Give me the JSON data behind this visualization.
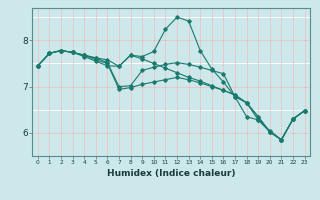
{
  "xlabel": "Humidex (Indice chaleur)",
  "bg_color": "#cce8ea",
  "grid_color_white": "#ffffff",
  "grid_color_red": "#d4a0a0",
  "line_color": "#1a7a6e",
  "marker_color": "#1a7a6e",
  "xlim": [
    -0.5,
    23.5
  ],
  "ylim": [
    5.5,
    8.7
  ],
  "yticks": [
    6,
    7,
    8
  ],
  "xticks": [
    0,
    1,
    2,
    3,
    4,
    5,
    6,
    7,
    8,
    9,
    10,
    11,
    12,
    13,
    14,
    15,
    16,
    17,
    18,
    19,
    20,
    21,
    22,
    23
  ],
  "series": [
    [
      7.45,
      7.72,
      7.78,
      7.74,
      7.68,
      7.62,
      7.58,
      7.44,
      7.68,
      7.65,
      7.76,
      8.24,
      8.5,
      8.42,
      7.78,
      7.38,
      7.1,
      6.78,
      6.65,
      6.28,
      6.02,
      5.85,
      6.3,
      6.48
    ],
    [
      7.45,
      7.72,
      7.78,
      7.74,
      7.68,
      7.62,
      7.52,
      7.0,
      7.02,
      7.35,
      7.42,
      7.48,
      7.52,
      7.48,
      7.42,
      7.35,
      7.28,
      6.78,
      6.35,
      6.28,
      6.05,
      5.85,
      6.3,
      6.48
    ],
    [
      7.45,
      7.72,
      7.78,
      7.74,
      7.68,
      7.58,
      7.5,
      6.94,
      6.98,
      7.05,
      7.1,
      7.15,
      7.2,
      7.15,
      7.08,
      7.0,
      6.92,
      6.82,
      6.65,
      6.35,
      6.02,
      5.85,
      6.3,
      6.48
    ],
    [
      7.45,
      7.72,
      7.78,
      7.74,
      7.65,
      7.55,
      7.45,
      7.44,
      7.68,
      7.6,
      7.5,
      7.4,
      7.3,
      7.2,
      7.12,
      7.02,
      6.92,
      6.82,
      6.65,
      6.35,
      6.02,
      5.85,
      6.3,
      6.48
    ]
  ]
}
